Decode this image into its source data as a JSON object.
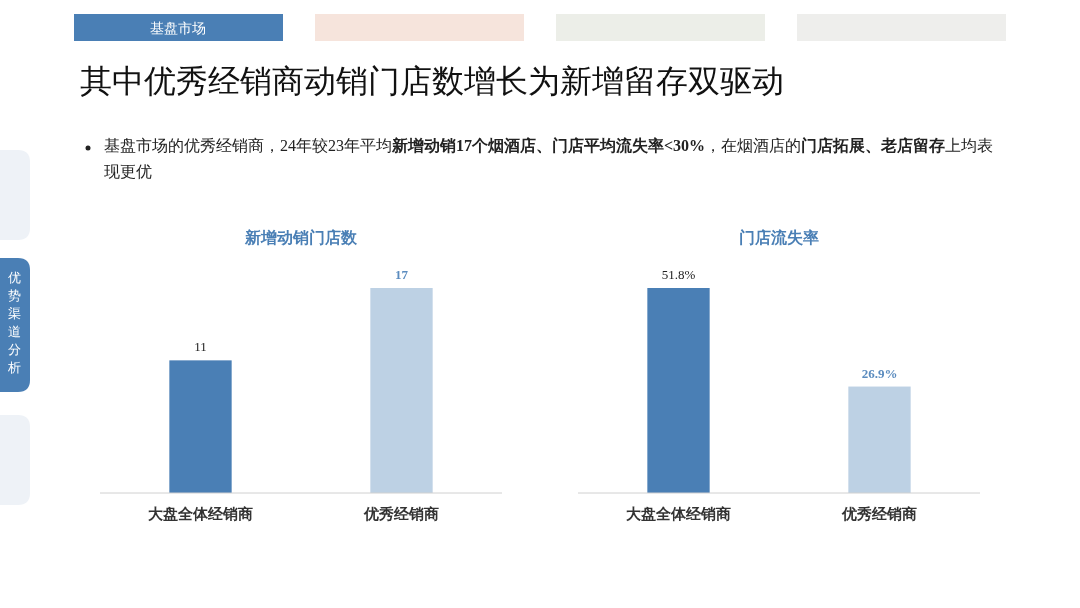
{
  "chart_data": [
    {
      "type": "other",
      "title": "其中优秀经销商动销门店数增长为新增留存双驱动",
      "annotations": [
        "基盘市场",
        "优势渠道分析",
        "基盘市场的优秀经销商，24年较23年平均",
        "新增动销17个烟酒店、门店平均流失率<30%",
        "，在烟酒店的",
        "门店拓展、老店留存",
        "上均表现更优"
      ]
    },
    {
      "type": "bar",
      "title": "新增动销门店数",
      "categories": [
        "大盘全体经销商",
        "优秀经销商"
      ],
      "values": [
        11,
        17
      ],
      "colors": [
        "#4a7fb5",
        "#bdd1e4"
      ],
      "data_labels": true
    },
    {
      "type": "bar",
      "title": "门店流失率",
      "categories": [
        "大盘全体经销商",
        "优秀经销商"
      ],
      "values": [
        51.8,
        26.9
      ],
      "value_labels": [
        "51.8%",
        "26.9%"
      ],
      "colors": [
        "#4a7fb5",
        "#bdd1e4"
      ]
    }
  ]
}
